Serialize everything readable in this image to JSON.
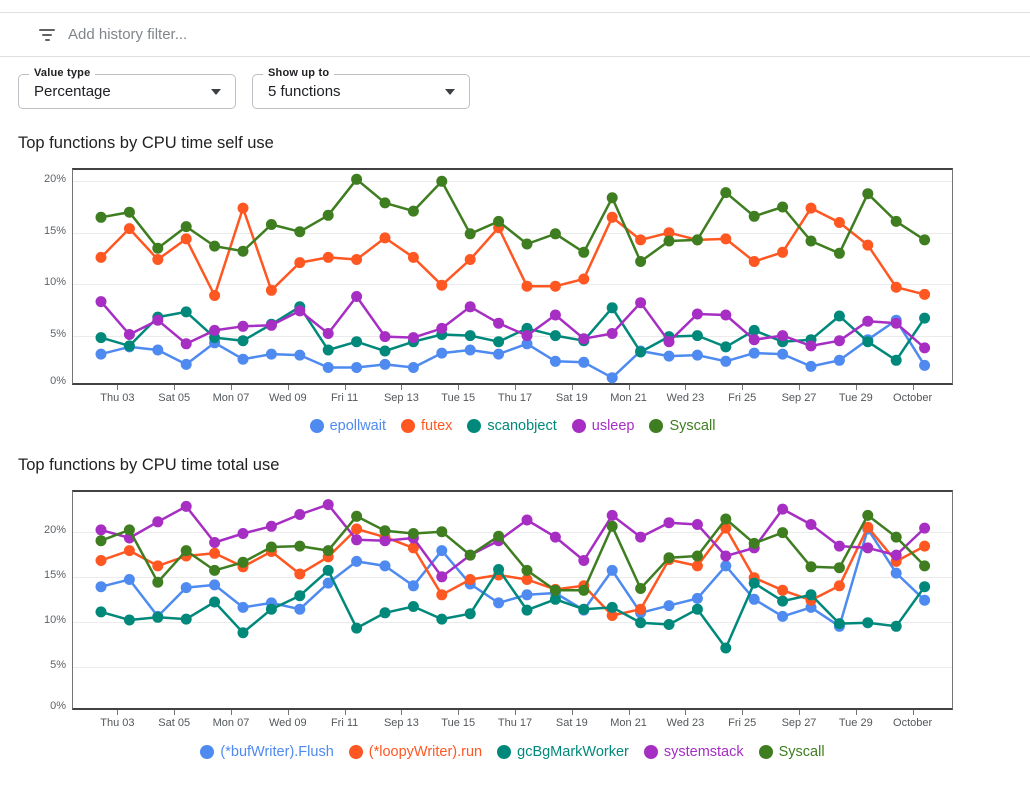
{
  "filter_bar": {
    "placeholder": "Add history filter...",
    "icon": "filter-list-icon"
  },
  "controls": [
    {
      "label": "Value type",
      "value": "Percentage"
    },
    {
      "label": "Show up to",
      "value": "5 functions"
    }
  ],
  "colors": {
    "blue": "#4E8AF0",
    "orange": "#FF5722",
    "teal": "#00897B",
    "purple": "#A62EC3",
    "green": "#3E7D20",
    "axis": "#757575",
    "grid": "#ebebeb",
    "text_muted": "#5f6368"
  },
  "chart_data": [
    {
      "type": "line",
      "title": "Top functions by CPU time self use",
      "x_tick_labels": [
        "Thu 03",
        "Sat 05",
        "Mon 07",
        "Wed 09",
        "Fri 11",
        "Sep 13",
        "Tue 15",
        "Thu 17",
        "Sat 19",
        "Mon 21",
        "Wed 23",
        "Fri 25",
        "Sep 27",
        "Tue 29",
        "October"
      ],
      "label_every": 2,
      "n_points": 30,
      "yticks": [
        "0%",
        "5%",
        "10%",
        "15%",
        "20%"
      ],
      "ytick_values": [
        0,
        5,
        10,
        15,
        20
      ],
      "ylim": [
        0,
        21.1
      ],
      "grid": true,
      "legend_position": "bottom",
      "series": [
        {
          "name": "epollwait",
          "color_key": "blue",
          "values": [
            3.2,
            3.9,
            3.6,
            2.2,
            4.3,
            2.7,
            3.2,
            3.1,
            1.9,
            1.9,
            2.2,
            1.9,
            3.3,
            3.6,
            3.2,
            4.2,
            2.5,
            2.4,
            0.9,
            3.5,
            3.0,
            3.1,
            2.5,
            3.3,
            3.2,
            2.0,
            2.6,
            4.6,
            6.5,
            2.1
          ]
        },
        {
          "name": "futex",
          "color_key": "orange",
          "values": [
            12.6,
            15.4,
            12.4,
            14.4,
            8.9,
            17.4,
            9.4,
            12.1,
            12.6,
            12.4,
            14.5,
            12.6,
            9.9,
            12.4,
            15.5,
            9.8,
            9.8,
            10.5,
            16.5,
            14.3,
            15.0,
            14.3,
            14.4,
            12.2,
            13.1,
            17.4,
            16.0,
            13.8,
            9.7,
            9.0
          ]
        },
        {
          "name": "scanobject",
          "color_key": "teal",
          "values": [
            4.8,
            4.0,
            6.8,
            7.3,
            4.8,
            4.5,
            6.1,
            7.8,
            3.6,
            4.4,
            3.5,
            4.4,
            5.1,
            5.0,
            4.4,
            5.7,
            5.0,
            4.5,
            7.7,
            3.4,
            4.9,
            5.0,
            3.9,
            5.5,
            4.4,
            4.6,
            6.9,
            4.4,
            2.6,
            6.7
          ]
        },
        {
          "name": "usleep",
          "color_key": "purple",
          "values": [
            8.3,
            5.1,
            6.5,
            4.2,
            5.5,
            5.9,
            6.0,
            7.4,
            5.2,
            8.8,
            4.9,
            4.8,
            5.7,
            7.8,
            6.2,
            5.0,
            7.0,
            4.7,
            5.2,
            8.2,
            4.4,
            7.1,
            7.0,
            4.6,
            5.0,
            4.0,
            4.5,
            6.4,
            6.2,
            3.8
          ]
        },
        {
          "name": "Syscall",
          "color_key": "green",
          "values": [
            16.5,
            17.0,
            13.5,
            15.6,
            13.7,
            13.2,
            15.8,
            15.1,
            16.7,
            20.2,
            17.9,
            17.1,
            20.0,
            14.9,
            16.1,
            13.9,
            14.9,
            13.1,
            18.4,
            12.2,
            14.2,
            14.3,
            18.9,
            16.6,
            17.5,
            14.2,
            13.0,
            18.8,
            16.1,
            14.3
          ]
        }
      ]
    },
    {
      "type": "line",
      "title": "Top functions by CPU time total use",
      "x_tick_labels": [
        "Thu 03",
        "Sat 05",
        "Mon 07",
        "Wed 09",
        "Fri 11",
        "Sep 13",
        "Tue 15",
        "Thu 17",
        "Sat 19",
        "Mon 21",
        "Wed 23",
        "Fri 25",
        "Sep 27",
        "Tue 29",
        "October"
      ],
      "label_every": 2,
      "n_points": 30,
      "yticks": [
        "0%",
        "5%",
        "10%",
        "15%",
        "20%"
      ],
      "ytick_values": [
        0,
        5,
        10,
        15,
        20
      ],
      "ylim": [
        0,
        24.4
      ],
      "grid": true,
      "legend_position": "bottom",
      "series": [
        {
          "name": "(*bufWriter).Flush",
          "color_key": "blue",
          "values": [
            13.9,
            14.7,
            10.6,
            13.8,
            14.1,
            11.6,
            12.1,
            11.4,
            14.3,
            16.7,
            16.2,
            14.0,
            17.9,
            14.2,
            12.1,
            13.0,
            13.2,
            11.3,
            15.7,
            11.0,
            11.8,
            12.6,
            16.2,
            12.5,
            10.6,
            11.6,
            9.5,
            20.3,
            15.4,
            12.4
          ]
        },
        {
          "name": "(*loopyWriter).run",
          "color_key": "orange",
          "values": [
            16.8,
            17.9,
            16.2,
            17.3,
            17.6,
            16.1,
            17.8,
            15.3,
            17.2,
            20.3,
            19.4,
            18.2,
            13.0,
            14.7,
            15.2,
            14.7,
            13.6,
            14.0,
            10.7,
            11.4,
            16.9,
            16.2,
            20.4,
            14.9,
            13.5,
            12.4,
            14.0,
            20.5,
            16.7,
            18.4
          ]
        },
        {
          "name": "gcBgMarkWorker",
          "color_key": "teal",
          "values": [
            11.1,
            10.2,
            10.5,
            10.3,
            12.2,
            8.8,
            11.4,
            12.9,
            15.7,
            9.3,
            11.0,
            11.7,
            10.3,
            10.9,
            15.8,
            11.3,
            12.5,
            11.4,
            11.6,
            9.9,
            9.7,
            11.4,
            7.1,
            14.3,
            12.3,
            13.0,
            9.8,
            9.9,
            9.5,
            13.9
          ]
        },
        {
          "name": "systemstack",
          "color_key": "purple",
          "values": [
            20.2,
            19.3,
            21.1,
            22.8,
            18.8,
            19.8,
            20.6,
            21.9,
            23.0,
            19.1,
            19.0,
            19.3,
            15.0,
            17.4,
            19.0,
            21.3,
            19.4,
            16.8,
            21.8,
            19.4,
            21.0,
            20.8,
            17.3,
            18.2,
            22.5,
            20.8,
            18.4,
            18.2,
            17.4,
            20.4
          ]
        },
        {
          "name": "Syscall",
          "color_key": "green",
          "values": [
            19.0,
            20.2,
            14.4,
            17.9,
            15.7,
            16.6,
            18.3,
            18.4,
            17.9,
            21.7,
            20.1,
            19.8,
            20.0,
            17.4,
            19.5,
            15.7,
            13.5,
            13.5,
            20.6,
            13.7,
            17.1,
            17.3,
            21.4,
            18.7,
            19.9,
            16.1,
            16.0,
            21.8,
            19.4,
            16.2
          ]
        }
      ]
    }
  ]
}
